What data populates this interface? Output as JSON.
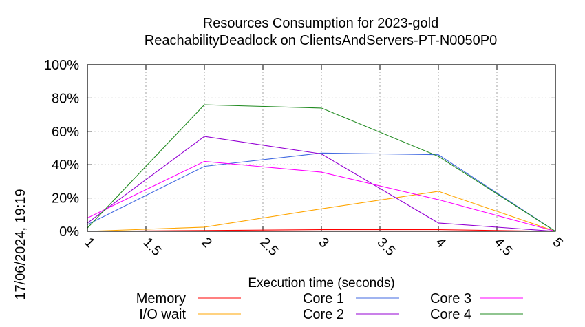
{
  "chart_data": {
    "type": "line",
    "title_line1": "Resources Consumption for 2023-gold",
    "title_line2": "ReachabilityDeadlock on ClientsAndServers-PT-N0050P0",
    "xlabel": "Execution time (seconds)",
    "ylabel": "",
    "timestamp": "17/06/2024, 19:19",
    "xlim": [
      1,
      5
    ],
    "ylim": [
      0,
      100
    ],
    "x_ticks": [
      "1",
      "1.5",
      "2",
      "2.5",
      "3",
      "3.5",
      "4",
      "4.5",
      "5"
    ],
    "y_ticks": [
      "0%",
      "20%",
      "40%",
      "60%",
      "80%",
      "100%"
    ],
    "grid": true,
    "legend_position": "bottom",
    "x": [
      1,
      2,
      3,
      4,
      5
    ],
    "series": [
      {
        "name": "Memory",
        "color": "#ff0000",
        "values": [
          0,
          0.5,
          1,
          1,
          0
        ]
      },
      {
        "name": "I/O wait",
        "color": "#ffa500",
        "values": [
          0,
          2.5,
          13.5,
          24,
          0
        ]
      },
      {
        "name": "Core 1",
        "color": "#4169e1",
        "values": [
          4,
          39,
          47,
          46,
          0
        ]
      },
      {
        "name": "Core 2",
        "color": "#9400d3",
        "values": [
          5,
          57,
          46.5,
          5,
          0
        ]
      },
      {
        "name": "Core 3",
        "color": "#ff00ff",
        "values": [
          8,
          42,
          35.5,
          19,
          0
        ]
      },
      {
        "name": "Core 4",
        "color": "#228b22",
        "values": [
          2,
          76,
          74,
          45,
          0
        ]
      }
    ]
  }
}
